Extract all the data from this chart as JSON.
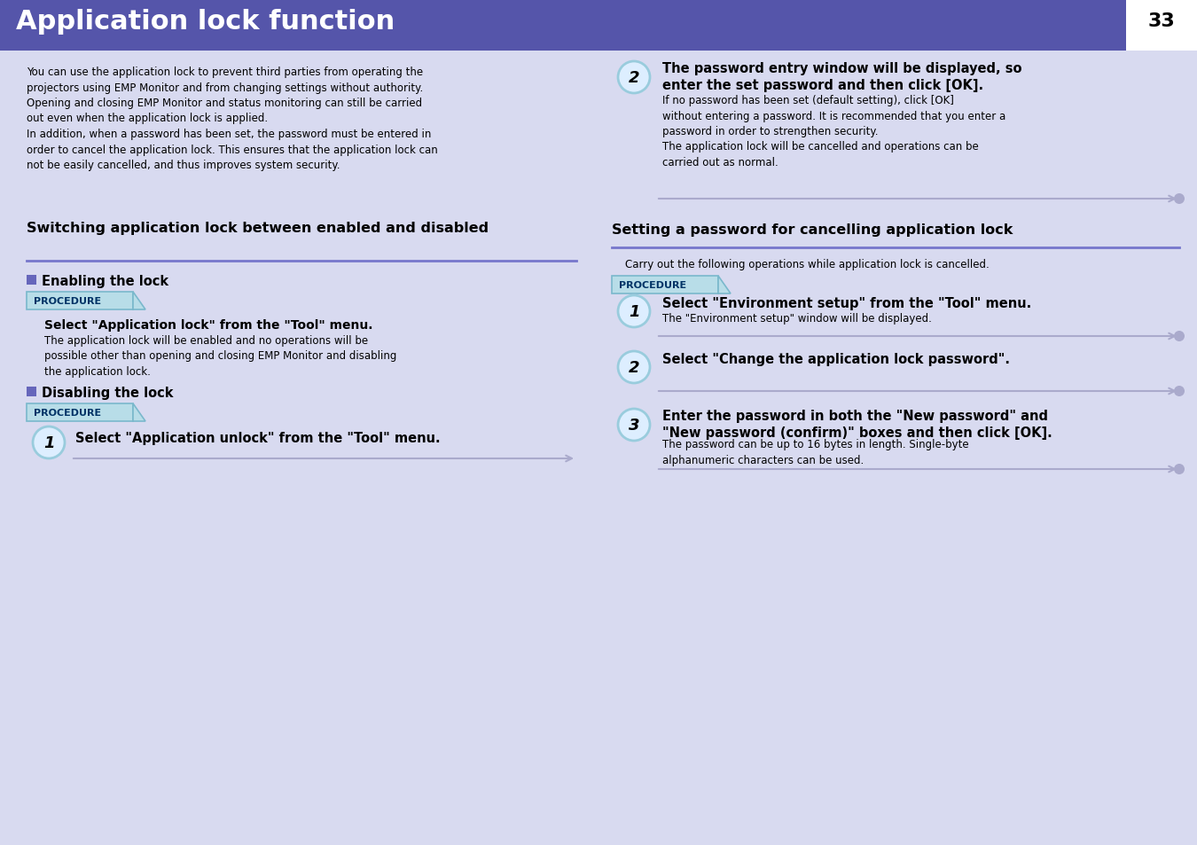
{
  "bg_color": "#d8daf0",
  "header_color": "#5555aa",
  "header_text": "Application lock function",
  "header_text_color": "#ffffff",
  "page_number": "33",
  "section_line_color": "#7777cc",
  "procedure_bg": "#b8dde8",
  "procedure_border": "#7ab8cc",
  "procedure_text": "PROCEDURE",
  "bullet_color": "#6666bb",
  "circle_fill": "#ddeeff",
  "circle_border": "#99ccdd",
  "arrow_color": "#aaaacc",
  "intro_text": "You can use the application lock to prevent third parties from operating the\nprojectors using EMP Monitor and from changing settings without authority.\nOpening and closing EMP Monitor and status monitoring can still be carried\nout even when the application lock is applied.\nIn addition, when a password has been set, the password must be entered in\norder to cancel the application lock. This ensures that the application lock can\nnot be easily cancelled, and thus improves system security.",
  "left_section_title": "Switching application lock between enabled and disabled",
  "right_section_title": "Setting a password for cancelling application lock",
  "enabling_title": "Enabling the lock",
  "disabling_title": "Disabling the lock",
  "enabling_step1_bold": "Select \"Application lock\" from the \"Tool\" menu.",
  "enabling_step1_text": "The application lock will be enabled and no operations will be\npossible other than opening and closing EMP Monitor and disabling\nthe application lock.",
  "disabling_step1_bold": "Select \"Application unlock\" from the \"Tool\" menu.",
  "right_top_step2_bold": "The password entry window will be displayed, so\nenter the set password and then click [OK].",
  "right_top_step2_text": "If no password has been set (default setting), click [OK]\nwithout entering a password. It is recommended that you enter a\npassword in order to strengthen security.\nThe application lock will be cancelled and operations can be\ncarried out as normal.",
  "right_intro": "Carry out the following operations while application lock is cancelled.",
  "right_step1_bold": "Select \"Environment setup\" from the \"Tool\" menu.",
  "right_step1_text": "The \"Environment setup\" window will be displayed.",
  "right_step2_bold": "Select \"Change the application lock password\".",
  "right_step3_bold": "Enter the password in both the \"New password\" and\n\"New password (confirm)\" boxes and then click [OK].",
  "right_step3_text": "The password can be up to 16 bytes in length. Single-byte\nalphanumeric characters can be used."
}
